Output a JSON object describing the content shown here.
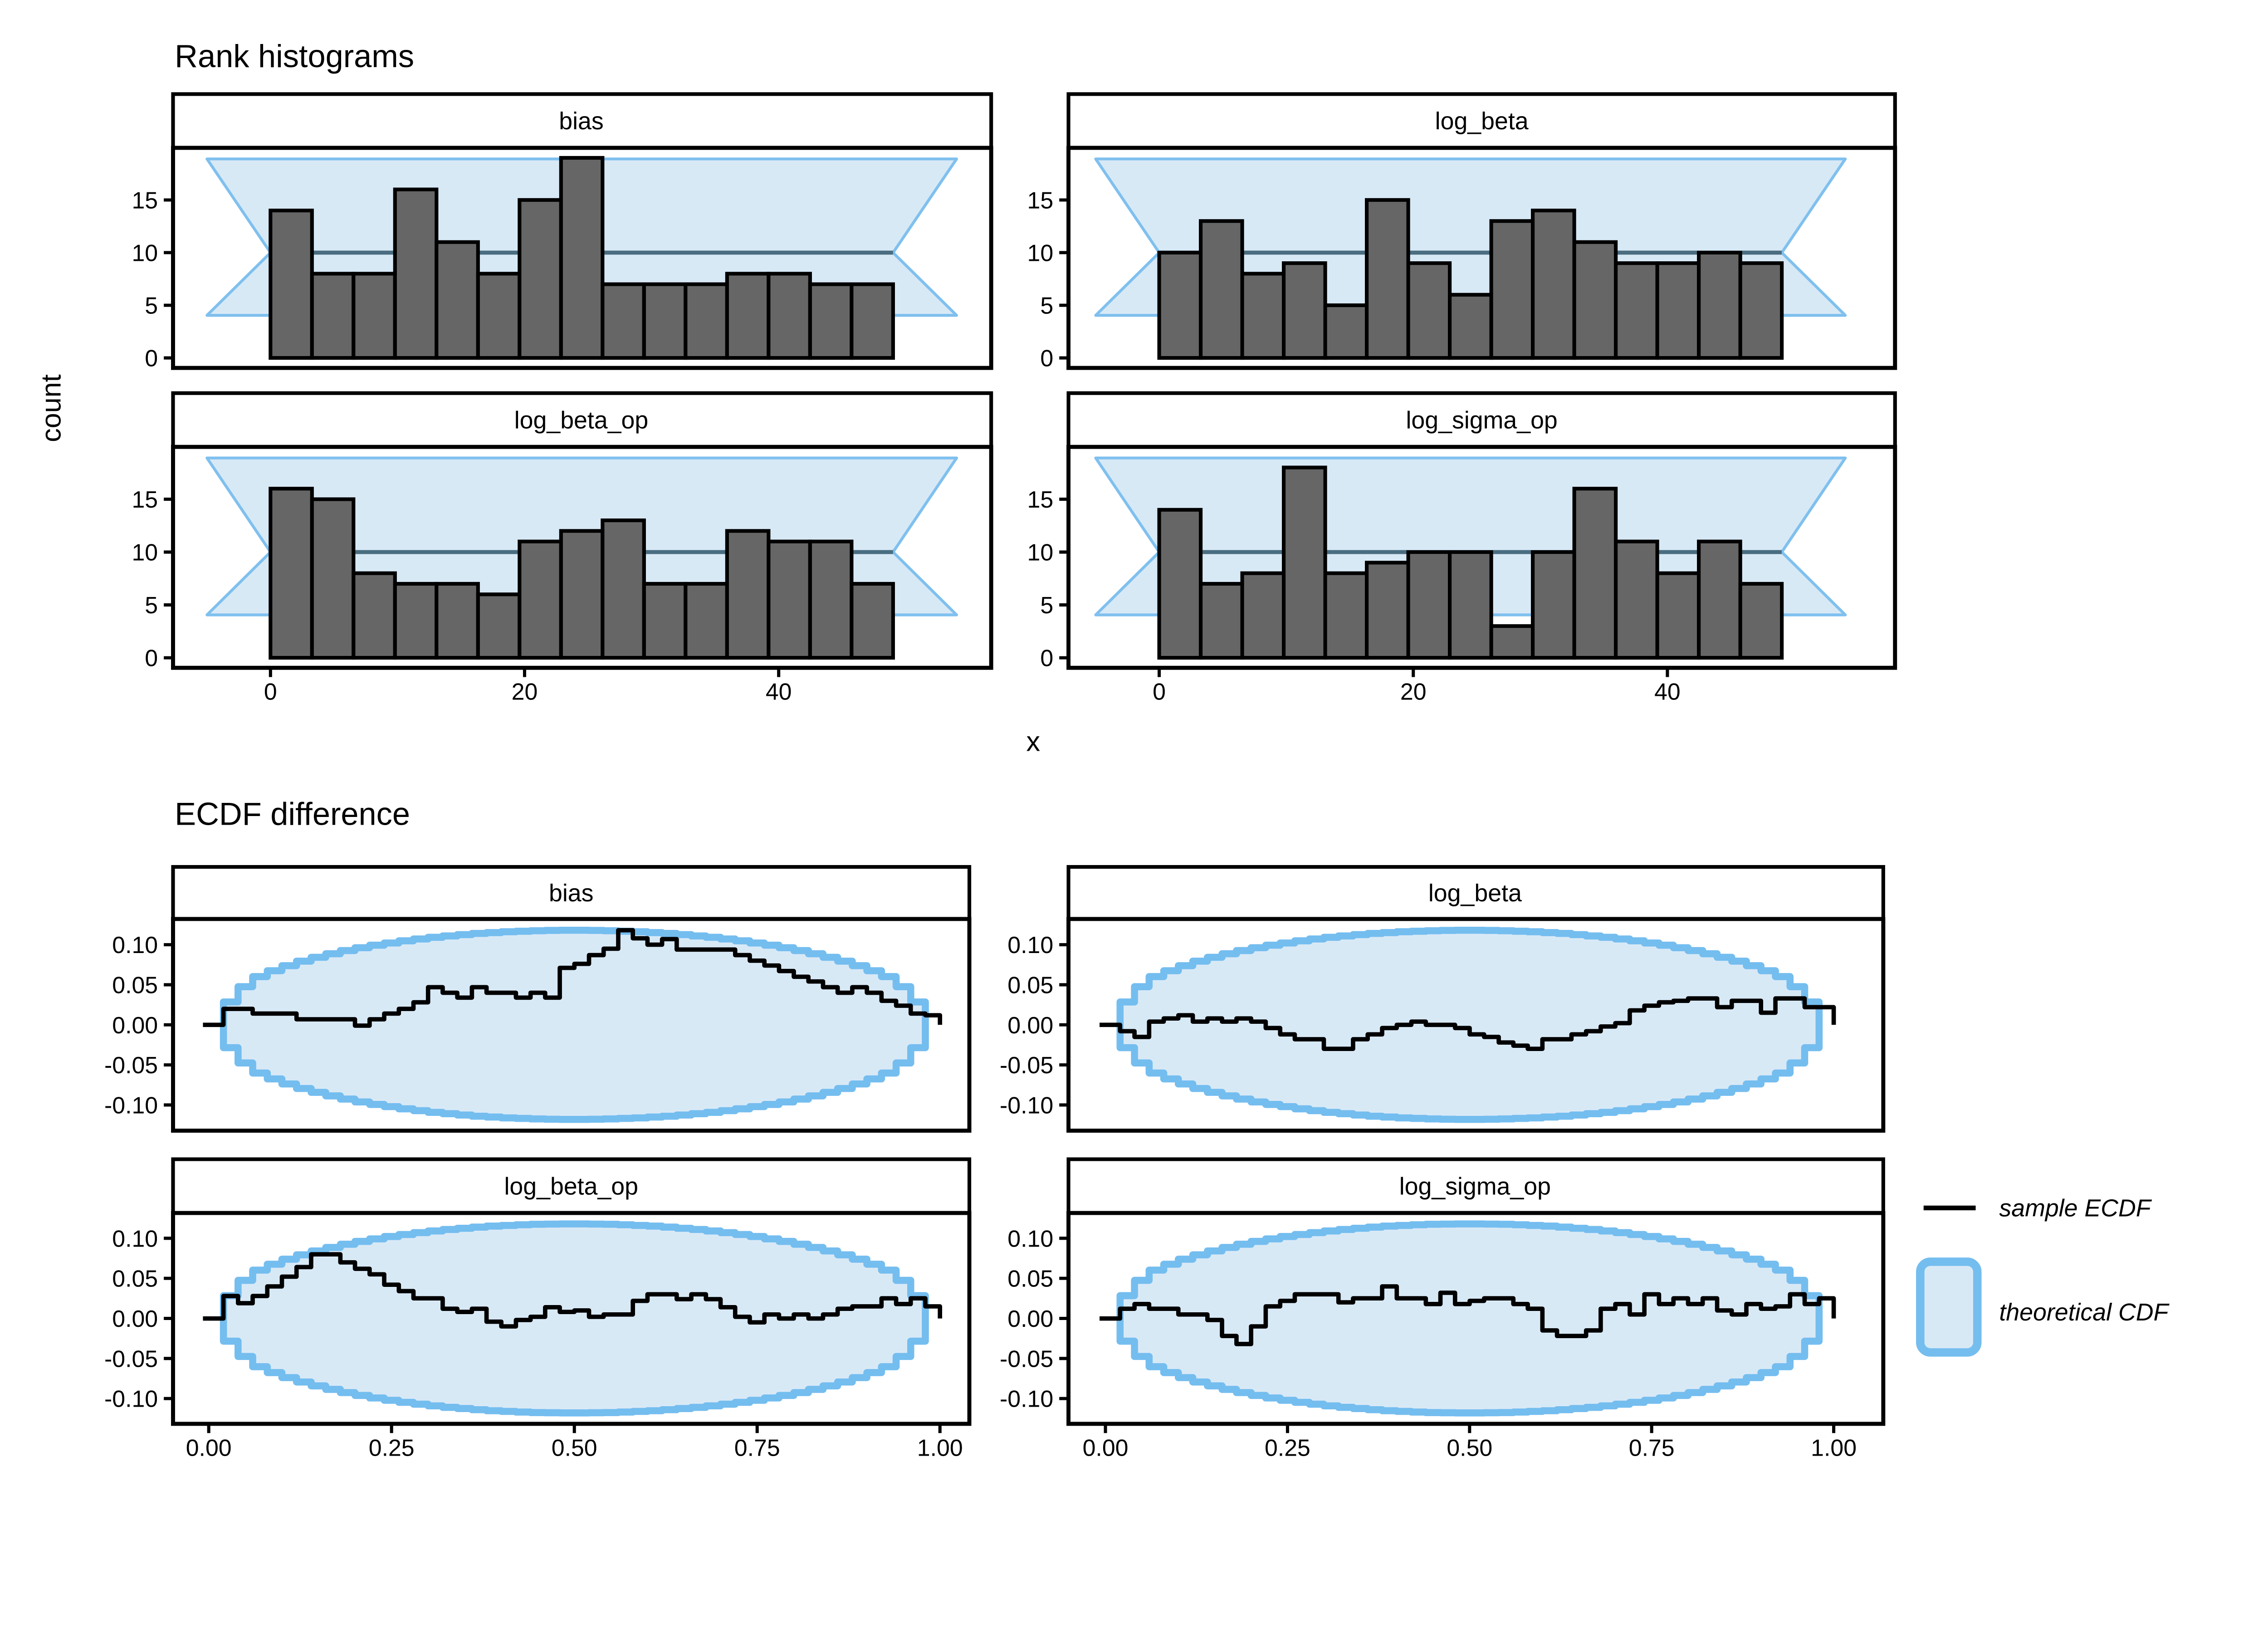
{
  "legend": {
    "items": [
      {
        "swatch": "black-line",
        "label": "sample ECDF"
      },
      {
        "swatch": "blue-box",
        "label": "theoretical CDF"
      }
    ]
  },
  "colors": {
    "bar_fill": "#666666",
    "bar_border": "#000000",
    "band_fill": "#d8e9f6",
    "band_border": "#7fc0ee",
    "band_midline": "#4a6d80",
    "envelope_fill": "#d8e9f6",
    "envelope_border": "#74bdef",
    "ecdf_line": "#000000",
    "panel_border": "#000000",
    "text": "#000000",
    "background": "#ffffff"
  },
  "chart_data": {
    "rank_histograms": {
      "type": "bar",
      "title": "Rank histograms",
      "x_axis_title": "x",
      "y_axis_title": "count",
      "x_ticks": [
        0,
        20,
        40
      ],
      "y_ticks": [
        0,
        5,
        10,
        15
      ],
      "bins": {
        "start": 0,
        "width": 3.267,
        "count": 15
      },
      "total_draws_per_facet": 150,
      "expected_count_line": 10,
      "confidence_band": {
        "top": 19,
        "bottom": 4,
        "mid": 10,
        "corner_left": -5,
        "corner_right": 54,
        "pinch_left": 0,
        "pinch_right": 49
      },
      "facets": [
        {
          "label": "bias",
          "counts": [
            14,
            8,
            8,
            16,
            11,
            8,
            15,
            19,
            7,
            7,
            7,
            8,
            8,
            7,
            7
          ]
        },
        {
          "label": "log_beta",
          "counts": [
            10,
            13,
            8,
            9,
            5,
            15,
            9,
            6,
            13,
            14,
            11,
            9,
            9,
            10,
            9
          ]
        },
        {
          "label": "log_beta_op",
          "counts": [
            16,
            15,
            8,
            7,
            7,
            6,
            11,
            12,
            13,
            7,
            7,
            12,
            11,
            11,
            7
          ]
        },
        {
          "label": "log_sigma_op",
          "counts": [
            14,
            7,
            8,
            18,
            8,
            9,
            10,
            10,
            3,
            10,
            16,
            11,
            8,
            11,
            7
          ]
        }
      ]
    },
    "ecdf_difference": {
      "type": "line",
      "title": "ECDF difference",
      "x_ticks": [
        "0.00",
        "0.25",
        "0.50",
        "0.75",
        "1.00"
      ],
      "y_ticks": [
        "0.10",
        "0.05",
        "0.00",
        "-0.05",
        "-0.10"
      ],
      "xlim": [
        0,
        1
      ],
      "ylim": [
        -0.132,
        0.132
      ],
      "n_steps": 50,
      "envelope_max_halfwidth": 0.118,
      "facets": [
        {
          "label": "bias",
          "ecdf_diff_steps": [
            0.0,
            0.02,
            0.02,
            0.014,
            0.014,
            0.014,
            0.007,
            0.007,
            0.007,
            0.007,
            -0.001,
            0.007,
            0.014,
            0.02,
            0.028,
            0.047,
            0.04,
            0.034,
            0.047,
            0.04,
            0.04,
            0.034,
            0.04,
            0.034,
            0.071,
            0.076,
            0.087,
            0.095,
            0.118,
            0.108,
            0.1,
            0.107,
            0.094,
            0.094,
            0.094,
            0.094,
            0.087,
            0.08,
            0.074,
            0.067,
            0.06,
            0.054,
            0.047,
            0.04,
            0.047,
            0.04,
            0.03,
            0.024,
            0.014,
            0.012
          ]
        },
        {
          "label": "log_beta",
          "ecdf_diff_steps": [
            0.0,
            -0.008,
            -0.015,
            0.004,
            0.008,
            0.012,
            0.004,
            0.008,
            0.004,
            0.008,
            0.004,
            -0.004,
            -0.012,
            -0.018,
            -0.018,
            -0.03,
            -0.03,
            -0.018,
            -0.012,
            -0.004,
            0.0,
            0.004,
            0.0,
            0.0,
            -0.004,
            -0.012,
            -0.015,
            -0.022,
            -0.026,
            -0.03,
            -0.018,
            -0.018,
            -0.012,
            -0.008,
            -0.002,
            0.002,
            0.018,
            0.024,
            0.028,
            0.03,
            0.033,
            0.033,
            0.022,
            0.03,
            0.03,
            0.015,
            0.033,
            0.033,
            0.022,
            0.022
          ]
        },
        {
          "label": "log_beta_op",
          "ecdf_diff_steps": [
            0.0,
            0.028,
            0.019,
            0.028,
            0.04,
            0.052,
            0.064,
            0.08,
            0.08,
            0.07,
            0.062,
            0.055,
            0.042,
            0.034,
            0.025,
            0.025,
            0.012,
            0.008,
            0.012,
            -0.004,
            -0.01,
            -0.002,
            0.002,
            0.014,
            0.008,
            0.01,
            0.002,
            0.005,
            0.005,
            0.022,
            0.03,
            0.03,
            0.024,
            0.03,
            0.024,
            0.014,
            0.002,
            -0.005,
            0.005,
            0.0,
            0.005,
            0.0,
            0.005,
            0.012,
            0.015,
            0.015,
            0.025,
            0.018,
            0.025,
            0.015
          ]
        },
        {
          "label": "log_sigma_op",
          "ecdf_diff_steps": [
            0.0,
            0.012,
            0.018,
            0.012,
            0.012,
            0.005,
            0.005,
            -0.002,
            -0.022,
            -0.032,
            -0.01,
            0.015,
            0.022,
            0.03,
            0.03,
            0.03,
            0.02,
            0.025,
            0.025,
            0.04,
            0.025,
            0.025,
            0.018,
            0.032,
            0.018,
            0.022,
            0.025,
            0.025,
            0.018,
            0.012,
            -0.015,
            -0.022,
            -0.022,
            -0.015,
            0.012,
            0.018,
            0.005,
            0.03,
            0.018,
            0.025,
            0.018,
            0.025,
            0.01,
            0.005,
            0.018,
            0.012,
            0.015,
            0.03,
            0.018,
            0.025
          ]
        }
      ]
    }
  }
}
